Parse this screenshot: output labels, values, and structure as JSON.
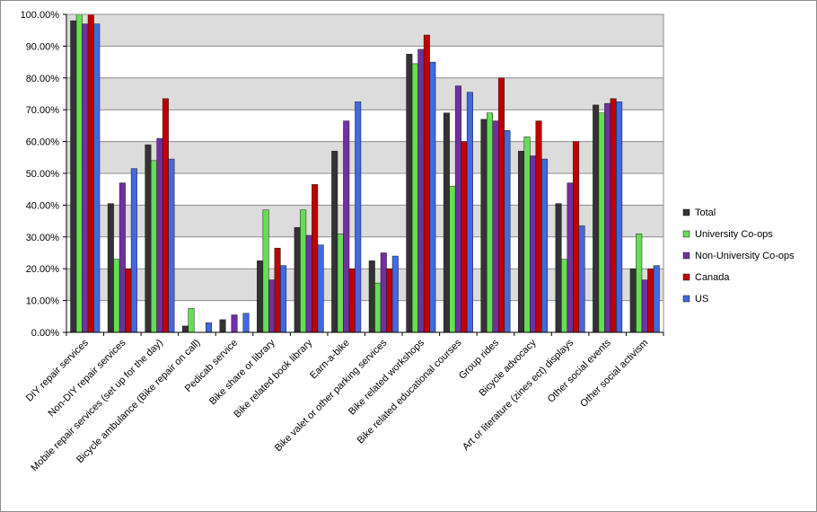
{
  "chart_data": {
    "type": "bar",
    "title": "",
    "xlabel": "",
    "ylabel": "",
    "ylim": [
      0,
      100
    ],
    "y_ticks": [
      "0.00%",
      "10.00%",
      "20.00%",
      "30.00%",
      "40.00%",
      "50.00%",
      "60.00%",
      "70.00%",
      "80.00%",
      "90.00%",
      "100.00%"
    ],
    "grid": true,
    "legend_position": "right",
    "categories": [
      "DIY repair services",
      "Non-DIY repair services",
      "Mobile repair services (set up for the day)",
      "Bicycle ambulance (Bike repair on call)",
      "Pedicab service",
      "Bike share or library",
      "Bike related book library",
      "Earn-a-bike",
      "Bike valet or other parking services",
      "Bike related workshops",
      "Bike related educational courses",
      "Group rides",
      "Bicycle advocacy",
      "Art or literature (zines ect) displays",
      "Other social events",
      "Other social activism"
    ],
    "series": [
      {
        "name": "Total",
        "color": "#333333",
        "values": [
          98,
          40.5,
          59,
          2,
          4,
          22.5,
          33,
          57,
          22.5,
          87.5,
          69,
          67,
          57,
          40.5,
          71.5,
          20
        ]
      },
      {
        "name": "University Co-ops",
        "color": "#66dd55",
        "values": [
          100,
          23,
          54,
          7.5,
          0,
          38.5,
          38.5,
          31,
          15.5,
          84.5,
          46,
          69,
          61.5,
          23,
          69,
          31
        ]
      },
      {
        "name": "Non-University Co-ops",
        "color": "#7030a0",
        "values": [
          97,
          47,
          61,
          0,
          5.5,
          16.5,
          30.5,
          66.5,
          25,
          89,
          77.5,
          66.5,
          55.5,
          47,
          72,
          16.5
        ]
      },
      {
        "name": "Canada",
        "color": "#c00000",
        "values": [
          100,
          20,
          73.5,
          0,
          0,
          26.5,
          46.5,
          20,
          20,
          93.5,
          60,
          80,
          66.5,
          60,
          73.5,
          20
        ]
      },
      {
        "name": "US",
        "color": "#4169e1",
        "values": [
          97,
          51.5,
          54.5,
          3,
          6,
          21,
          27.5,
          72.5,
          24,
          85,
          75.5,
          63.5,
          54.5,
          33.5,
          72.5,
          21
        ]
      }
    ]
  }
}
